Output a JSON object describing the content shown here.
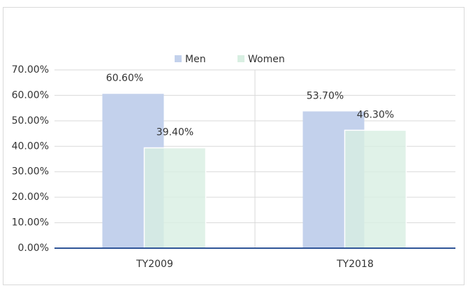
{
  "chart_data": {
    "type": "bar",
    "categories": [
      "TY2009",
      "TY2018"
    ],
    "series": [
      {
        "name": "Men",
        "color": "#c3d1ec",
        "values": [
          60.6,
          53.7
        ],
        "value_labels": [
          "60.60%",
          "53.70%"
        ]
      },
      {
        "name": "Women",
        "color": "#d8efe2",
        "values": [
          39.4,
          46.3
        ],
        "value_labels": [
          "39.40%",
          "46.30%"
        ]
      }
    ],
    "ylim": [
      0,
      70
    ],
    "yticks": [
      {
        "value": 0,
        "label": "0.00%"
      },
      {
        "value": 10,
        "label": "10.00%"
      },
      {
        "value": 20,
        "label": "20.00%"
      },
      {
        "value": 30,
        "label": "30.00%"
      },
      {
        "value": 40,
        "label": "40.00%"
      },
      {
        "value": 50,
        "label": "50.00%"
      },
      {
        "value": 60,
        "label": "60.00%"
      },
      {
        "value": 70,
        "label": "70.00%"
      }
    ],
    "grid": true,
    "legend": "top"
  }
}
